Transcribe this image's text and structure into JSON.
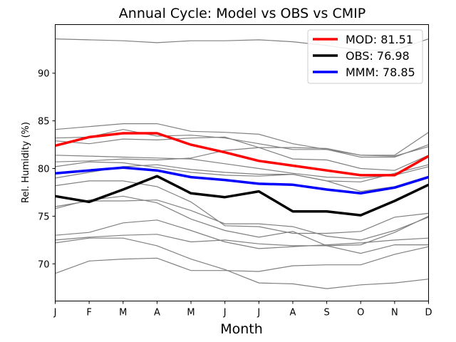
{
  "chart_data": {
    "type": "line",
    "title": "Annual Cycle: Model vs OBS vs CMIP",
    "xlabel": "Month",
    "ylabel": "Rel. Humidity (%)",
    "categories": [
      "J",
      "F",
      "M",
      "A",
      "M",
      "J",
      "J",
      "A",
      "S",
      "O",
      "N",
      "D"
    ],
    "ylim": [
      66.1,
      95.1
    ],
    "yticks": [
      70,
      75,
      80,
      85,
      90
    ],
    "legend_position": "top-right",
    "background_series": [
      [
        93.6,
        93.5,
        93.4,
        93.2,
        93.4,
        93.4,
        93.5,
        93.3,
        92.9,
        92.4,
        92.4,
        93.6
      ],
      [
        84.1,
        84.4,
        84.7,
        84.7,
        83.9,
        83.8,
        83.6,
        82.6,
        82.0,
        81.4,
        81.4,
        83.8
      ],
      [
        83.2,
        83.3,
        84.1,
        83.4,
        83.5,
        83.2,
        82.6,
        82.0,
        82.0,
        81.2,
        81.2,
        82.5
      ],
      [
        82.9,
        82.6,
        83.1,
        83.0,
        83.2,
        83.3,
        82.2,
        81.0,
        80.9,
        80.0,
        79.8,
        81.4
      ],
      [
        81.4,
        81.3,
        81.2,
        81.1,
        81.0,
        80.5,
        80.0,
        79.5,
        79.1,
        79.0,
        79.3,
        80.2
      ],
      [
        80.7,
        80.8,
        81.0,
        80.9,
        81.1,
        81.9,
        82.2,
        82.2,
        82.1,
        81.4,
        81.3,
        82.3
      ],
      [
        80.2,
        80.7,
        80.6,
        80.1,
        79.6,
        79.3,
        79.2,
        79.4,
        78.7,
        78.6,
        79.5,
        80.4
      ],
      [
        79.0,
        79.6,
        80.2,
        80.4,
        79.9,
        79.6,
        79.4,
        79.4,
        78.7,
        77.6,
        78.1,
        79.2
      ],
      [
        78.2,
        78.7,
        78.7,
        78.1,
        76.5,
        74.0,
        73.9,
        73.2,
        73.2,
        73.4,
        74.9,
        75.3
      ],
      [
        76.0,
        76.6,
        76.6,
        76.7,
        75.6,
        74.2,
        74.2,
        73.9,
        72.9,
        72.5,
        73.5,
        74.9
      ],
      [
        75.8,
        76.7,
        77.1,
        76.4,
        74.7,
        73.5,
        72.8,
        73.4,
        71.9,
        71.1,
        72.0,
        72.0
      ],
      [
        73.0,
        73.3,
        74.3,
        74.6,
        73.5,
        72.3,
        71.6,
        71.8,
        72.0,
        72.2,
        72.5,
        72.7
      ],
      [
        72.2,
        72.7,
        72.7,
        71.9,
        70.5,
        69.4,
        68.0,
        67.9,
        67.4,
        67.8,
        68.0,
        68.4
      ],
      [
        72.5,
        72.8,
        73.0,
        73.1,
        72.3,
        72.5,
        72.1,
        71.9,
        71.9,
        72.0,
        73.3,
        75.0
      ],
      [
        69.0,
        70.3,
        70.5,
        70.6,
        69.3,
        69.3,
        69.2,
        69.8,
        69.9,
        69.9,
        71.0,
        71.8
      ]
    ],
    "series": [
      {
        "name": "MOD",
        "label": "MOD: 81.51",
        "color": "#ff0000",
        "values": [
          82.4,
          83.3,
          83.7,
          83.7,
          82.5,
          81.7,
          80.8,
          80.3,
          79.8,
          79.3,
          79.3,
          81.3
        ]
      },
      {
        "name": "OBS",
        "label": "OBS: 76.98",
        "color": "#000000",
        "values": [
          77.1,
          76.5,
          77.8,
          79.2,
          77.4,
          77.0,
          77.6,
          75.5,
          75.5,
          75.1,
          76.6,
          78.3
        ]
      },
      {
        "name": "MMM",
        "label": "MMM: 78.85",
        "color": "#0000ff",
        "values": [
          79.5,
          79.8,
          80.1,
          79.8,
          79.1,
          78.8,
          78.4,
          78.3,
          77.8,
          77.4,
          78.0,
          79.1
        ]
      }
    ],
    "background_color": "#808080"
  }
}
